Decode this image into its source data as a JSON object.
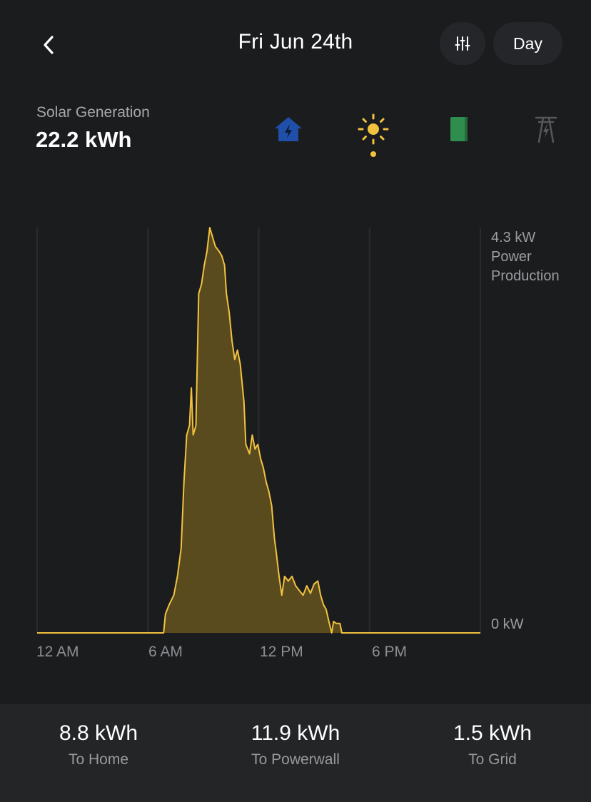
{
  "header": {
    "title": "Fri Jun 24th",
    "range_label": "Day"
  },
  "summary": {
    "label": "Solar Generation",
    "value": "22.2 kWh"
  },
  "source_icons": [
    {
      "name": "home-icon",
      "color": "#1f4fa8"
    },
    {
      "name": "sun-icon",
      "color": "#f2c23f",
      "active": true
    },
    {
      "name": "powerwall-icon",
      "color": "#2f8d4e"
    },
    {
      "name": "grid-tower-icon",
      "color": "#55575b"
    }
  ],
  "chart_data": {
    "type": "area",
    "x_unit": "hour of day",
    "y_unit": "kW",
    "ylim": [
      0,
      4.3
    ],
    "xlim": [
      0,
      24
    ],
    "x_tick_labels": [
      "12 AM",
      "6 AM",
      "12 PM",
      "6 PM"
    ],
    "x_ticks": [
      0,
      6,
      12,
      18
    ],
    "y_max_label": "4.3 kW",
    "y_axis_title": [
      "Power",
      "Production"
    ],
    "y_min_label": "0 kW",
    "grid": true,
    "line_color": "#f2c23f",
    "fill_color": "#5a4b1f",
    "points": [
      [
        0,
        0
      ],
      [
        6.85,
        0
      ],
      [
        6.95,
        0.2
      ],
      [
        7.15,
        0.3
      ],
      [
        7.4,
        0.4
      ],
      [
        7.6,
        0.6
      ],
      [
        7.8,
        0.9
      ],
      [
        7.95,
        1.6
      ],
      [
        8.1,
        2.1
      ],
      [
        8.25,
        2.2
      ],
      [
        8.35,
        2.6
      ],
      [
        8.45,
        2.1
      ],
      [
        8.6,
        2.2
      ],
      [
        8.75,
        3.6
      ],
      [
        8.9,
        3.7
      ],
      [
        9.05,
        3.9
      ],
      [
        9.2,
        4.05
      ],
      [
        9.35,
        4.3
      ],
      [
        9.5,
        4.2
      ],
      [
        9.65,
        4.1
      ],
      [
        9.85,
        4.05
      ],
      [
        10.0,
        4.0
      ],
      [
        10.15,
        3.9
      ],
      [
        10.25,
        3.6
      ],
      [
        10.4,
        3.4
      ],
      [
        10.55,
        3.1
      ],
      [
        10.7,
        2.9
      ],
      [
        10.85,
        3.0
      ],
      [
        11.0,
        2.85
      ],
      [
        11.2,
        2.45
      ],
      [
        11.3,
        2.0
      ],
      [
        11.5,
        1.9
      ],
      [
        11.65,
        2.1
      ],
      [
        11.8,
        1.95
      ],
      [
        11.95,
        2.0
      ],
      [
        12.1,
        1.85
      ],
      [
        12.25,
        1.75
      ],
      [
        12.4,
        1.6
      ],
      [
        12.55,
        1.5
      ],
      [
        12.7,
        1.35
      ],
      [
        12.85,
        1.0
      ],
      [
        12.95,
        0.85
      ],
      [
        13.1,
        0.6
      ],
      [
        13.25,
        0.4
      ],
      [
        13.4,
        0.6
      ],
      [
        13.6,
        0.55
      ],
      [
        13.8,
        0.6
      ],
      [
        14.0,
        0.5
      ],
      [
        14.2,
        0.45
      ],
      [
        14.4,
        0.4
      ],
      [
        14.6,
        0.5
      ],
      [
        14.8,
        0.42
      ],
      [
        15.0,
        0.52
      ],
      [
        15.2,
        0.55
      ],
      [
        15.35,
        0.4
      ],
      [
        15.5,
        0.3
      ],
      [
        15.65,
        0.25
      ],
      [
        15.8,
        0.12
      ],
      [
        15.95,
        0.0
      ],
      [
        16.05,
        0.12
      ],
      [
        16.2,
        0.1
      ],
      [
        16.4,
        0.1
      ],
      [
        16.5,
        0
      ],
      [
        24,
        0
      ]
    ]
  },
  "footer": {
    "stats": [
      {
        "value": "8.8 kWh",
        "label": "To Home"
      },
      {
        "value": "11.9 kWh",
        "label": "To Powerwall"
      },
      {
        "value": "1.5 kWh",
        "label": "To Grid"
      }
    ]
  }
}
